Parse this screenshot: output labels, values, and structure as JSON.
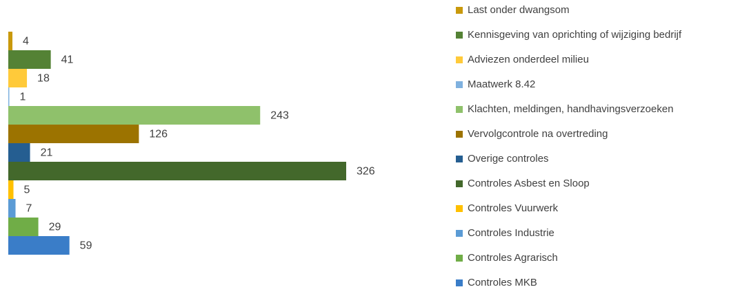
{
  "chart_data": {
    "type": "bar",
    "orientation": "horizontal",
    "series": [
      {
        "name": "Last onder dwangsom",
        "color": "#c9990c",
        "values": [
          4
        ]
      },
      {
        "name": "Kennisgeving van oprichting of wijziging bedrijf",
        "color": "#548235",
        "values": [
          41
        ]
      },
      {
        "name": "Adviezen onderdeel milieu",
        "color": "#ffca3a",
        "values": [
          18
        ]
      },
      {
        "name": "Maatwerk 8.42",
        "color": "#7fb1df",
        "values": [
          1
        ]
      },
      {
        "name": "Klachten, meldingen, handhavingsverzoeken",
        "color": "#8fc16b",
        "values": [
          243
        ]
      },
      {
        "name": "Vervolgcontrole na overtreding",
        "color": "#9c7300",
        "values": [
          126
        ]
      },
      {
        "name": "Overige controles",
        "color": "#255e91",
        "values": [
          21
        ]
      },
      {
        "name": "Controles Asbest en Sloop",
        "color": "#43682b",
        "values": [
          326
        ]
      },
      {
        "name": "Controles Vuurwerk",
        "color": "#ffc000",
        "values": [
          5
        ]
      },
      {
        "name": "Controles Industrie",
        "color": "#5b9bd5",
        "values": [
          7
        ]
      },
      {
        "name": "Controles Agrarisch",
        "color": "#70ad47",
        "values": [
          29
        ]
      },
      {
        "name": "Controles MKB",
        "color": "#3a7dc8",
        "values": [
          59
        ]
      }
    ],
    "legend": "right"
  }
}
